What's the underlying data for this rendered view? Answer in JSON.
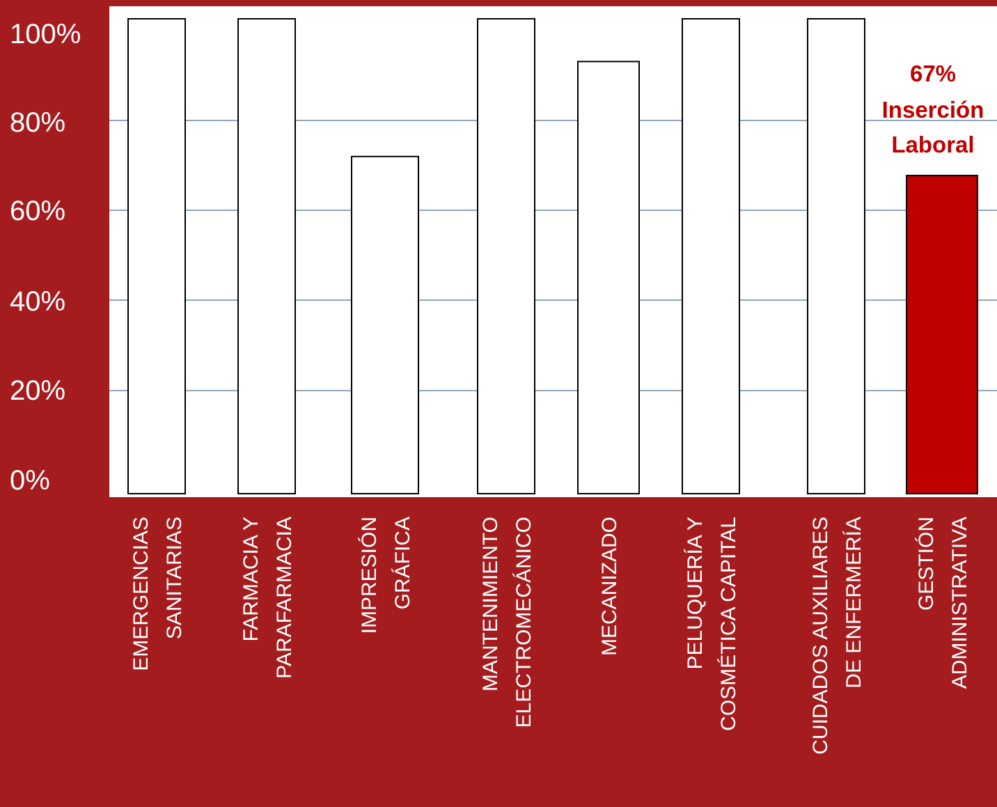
{
  "chart_data": {
    "type": "bar",
    "categories": [
      [
        "EMERGENCIAS",
        "SANITARIAS"
      ],
      [
        "FARMACIA Y",
        "PARAFARMACIA"
      ],
      [
        "IMPRESIÓN",
        "GRÁFICA"
      ],
      [
        "MANTENIMIENTO",
        "ELECTROMECÁNICO"
      ],
      [
        "MECANIZADO"
      ],
      [
        "PELUQUERÍA Y",
        "COSMÉTICA CAPITAL"
      ],
      [
        "CUIDADOS AUXILIARES",
        "DE ENFERMERÍA"
      ],
      [
        "GESTIÓN",
        "ADMINISTRATIVA"
      ]
    ],
    "values": [
      100,
      100,
      71,
      100,
      91,
      100,
      100,
      67
    ],
    "highlight_index": 7,
    "ylim": [
      0,
      100
    ],
    "yticks": [
      "0%",
      "20%",
      "40%",
      "60%",
      "80%",
      "100%"
    ],
    "grid": true,
    "annotation": [
      "67%",
      "Inserción",
      "Laboral"
    ],
    "colors": {
      "background": "#a51c1f",
      "plot_area": "#ffffff",
      "bar_fill": "#ffffff",
      "bar_stroke": "#000000",
      "highlight_bar": "#c00000",
      "annotation": "#c00000",
      "gridline": "#1f4e79",
      "text": "#ffffff"
    }
  }
}
